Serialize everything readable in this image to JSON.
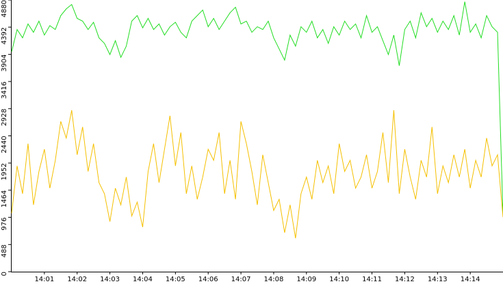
{
  "chart_data": {
    "type": "line",
    "x": [
      0,
      10,
      20,
      30,
      40,
      50,
      60,
      70,
      80,
      90,
      100,
      110,
      120,
      130,
      140,
      150,
      160,
      170,
      180,
      190,
      200,
      210,
      220,
      230,
      240,
      250,
      260,
      270,
      280,
      290,
      300,
      310,
      320,
      330,
      340,
      350,
      360,
      370,
      380,
      390,
      400,
      410,
      420,
      430,
      440,
      450,
      460,
      470,
      480,
      490,
      500,
      510,
      520,
      530,
      540,
      550,
      560,
      570,
      580,
      590,
      600,
      610,
      620,
      630,
      640,
      650,
      660,
      670,
      680,
      690,
      700,
      710,
      720,
      730,
      740,
      750,
      760,
      770,
      780,
      790,
      800,
      810,
      820,
      830,
      840,
      850,
      860,
      870,
      880,
      890,
      900
    ],
    "series": [
      {
        "color": "#22dd22",
        "values": [
          3950,
          4350,
          4200,
          4450,
          4300,
          4500,
          4250,
          4420,
          4350,
          4600,
          4720,
          4800,
          4550,
          4500,
          4350,
          4480,
          4200,
          4100,
          3900,
          4150,
          3850,
          4050,
          4500,
          4600,
          4380,
          4550,
          4350,
          4450,
          4250,
          4400,
          4480,
          4300,
          4200,
          4500,
          4600,
          4700,
          4400,
          4550,
          4350,
          4500,
          4650,
          4750,
          4450,
          4500,
          4300,
          4400,
          4350,
          4500,
          4200,
          4000,
          3800,
          4250,
          4050,
          4400,
          4300,
          4500,
          4200,
          4350,
          4100,
          4400,
          4250,
          4500,
          4350,
          4450,
          4200,
          4600,
          4300,
          4400,
          4150,
          3900,
          4250,
          3700,
          4350,
          4500,
          4200,
          4650,
          4400,
          4550,
          4300,
          4500,
          4350,
          4600,
          4250,
          4850,
          4300,
          4450,
          4200,
          4600,
          4400,
          4300,
          1000
        ]
      },
      {
        "color": "#f5c000",
        "values": [
          1050,
          1900,
          1400,
          2300,
          1200,
          1800,
          2200,
          1500,
          2000,
          2700,
          2400,
          2900,
          2100,
          2600,
          1800,
          2300,
          1600,
          1400,
          900,
          1500,
          1200,
          1700,
          1000,
          1250,
          800,
          1800,
          2300,
          1600,
          2200,
          2800,
          1900,
          2500,
          1400,
          1900,
          1300,
          1700,
          2200,
          2000,
          2500,
          1400,
          2000,
          1300,
          2700,
          2300,
          1800,
          1200,
          2100,
          1600,
          1100,
          1300,
          700,
          1200,
          600,
          1400,
          1700,
          1300,
          2000,
          1600,
          1900,
          1400,
          2300,
          1800,
          2000,
          1500,
          1700,
          2100,
          1500,
          1800,
          2500,
          1600,
          2900,
          1400,
          2200,
          1700,
          1300,
          2000,
          1700,
          2600,
          1400,
          1900,
          1600,
          2100,
          1700,
          2200,
          1500,
          2000,
          1700,
          2400,
          1900,
          2100,
          980
        ]
      }
    ],
    "xlim": [
      0,
      900
    ],
    "xticks": [
      {
        "value": 60,
        "label": "14:01"
      },
      {
        "value": 120,
        "label": "14:02"
      },
      {
        "value": 180,
        "label": "14:03"
      },
      {
        "value": 240,
        "label": "14:04"
      },
      {
        "value": 300,
        "label": "14:05"
      },
      {
        "value": 360,
        "label": "14:06"
      },
      {
        "value": 420,
        "label": "14:07"
      },
      {
        "value": 480,
        "label": "14:08"
      },
      {
        "value": 540,
        "label": "14:09"
      },
      {
        "value": 600,
        "label": "14:10"
      },
      {
        "value": 660,
        "label": "14:11"
      },
      {
        "value": 720,
        "label": "14:12"
      },
      {
        "value": 780,
        "label": "14:13"
      },
      {
        "value": 840,
        "label": "14:14"
      }
    ],
    "ylim": [
      0,
      4880
    ],
    "yticks": [
      0,
      488,
      976,
      1464,
      1952,
      2440,
      2928,
      3416,
      3904,
      4392,
      4880
    ],
    "grid": false
  }
}
